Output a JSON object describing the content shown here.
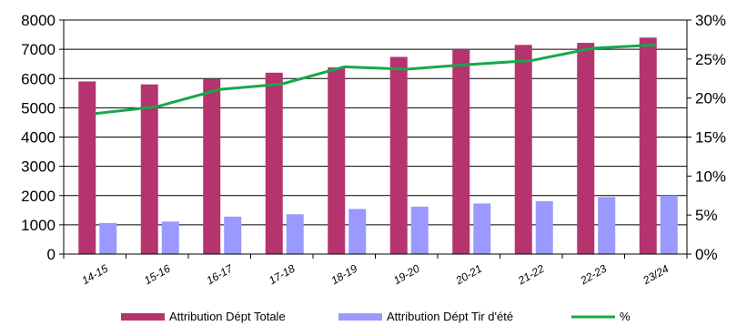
{
  "chart_data": {
    "type": "bar",
    "categories": [
      "14-15",
      "15-16",
      "16-17",
      "17-18",
      "18-19",
      "19-20",
      "20-21",
      "21-22",
      "22-23",
      "23/24"
    ],
    "series": [
      {
        "name": "Attribution Dépt Totale",
        "kind": "bar",
        "axis": "left",
        "color": "#b5346f",
        "values": [
          5900,
          5800,
          5980,
          6200,
          6380,
          6740,
          7000,
          7150,
          7220,
          7400
        ]
      },
      {
        "name": "Attribution Dépt Tir d'été",
        "kind": "bar",
        "axis": "left",
        "color": "#9999ff",
        "values": [
          1060,
          1110,
          1280,
          1360,
          1540,
          1620,
          1730,
          1810,
          1950,
          2000
        ]
      },
      {
        "name": "%",
        "kind": "line",
        "axis": "right",
        "color": "#16a84a",
        "values": [
          18.0,
          18.9,
          21.1,
          21.8,
          24.0,
          23.7,
          24.3,
          24.8,
          26.4,
          26.8
        ]
      }
    ],
    "y_left": {
      "min": 0,
      "max": 8000,
      "step": 1000,
      "ticks": [
        "0",
        "1000",
        "2000",
        "3000",
        "4000",
        "5000",
        "6000",
        "7000",
        "8000"
      ]
    },
    "y_right": {
      "min": 0,
      "max": 30,
      "step": 5,
      "ticks": [
        "0%",
        "5%",
        "10%",
        "15%",
        "20%",
        "25%",
        "30%"
      ]
    },
    "grid": true,
    "legend_position": "bottom",
    "title": "",
    "xlabel": "",
    "ylabel": ""
  }
}
